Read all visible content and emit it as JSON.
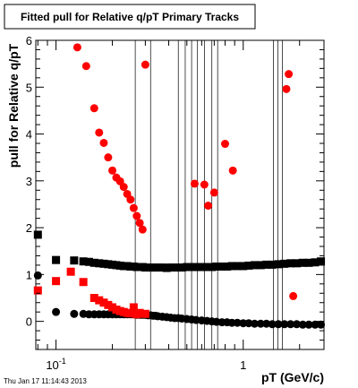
{
  "chart_data": {
    "type": "scatter",
    "title": "Fitted pull for Relative q/pT  Primary Tracks",
    "xlabel": "pT (GeV/c)",
    "ylabel": "pull for Relative q/pT",
    "x_scale": "log",
    "xlim": [
      0.078,
      2.7
    ],
    "ylim": [
      -0.6,
      6.0
    ],
    "x_tick_labels": [
      {
        "value": 0.1,
        "base": "10",
        "exp": "-1"
      },
      {
        "value": 1,
        "base": "1",
        "exp": ""
      }
    ],
    "y_tick_labels": [
      0,
      1,
      2,
      3,
      4,
      5,
      6
    ],
    "grid": false,
    "timestamp": "Thu Jan 17 11:14:43 2013",
    "colors": {
      "black": "#000000",
      "red": "#ff0000"
    },
    "series": [
      {
        "marker": "square",
        "color": "#000000",
        "x": [
          0.08,
          0.1,
          0.125,
          0.14,
          0.15,
          0.16,
          0.17,
          0.18,
          0.19,
          0.2,
          0.21,
          0.22,
          0.23,
          0.24,
          0.25,
          0.26,
          0.27,
          0.28,
          0.29,
          0.3,
          0.31,
          0.32,
          0.33,
          0.34,
          0.35,
          0.37,
          0.39,
          0.41,
          0.43,
          0.45,
          0.47,
          0.5,
          0.53,
          0.56,
          0.6,
          0.64,
          0.68,
          0.72,
          0.77,
          0.82,
          0.87,
          0.93,
          1.0,
          1.07,
          1.15,
          1.24,
          1.33,
          1.43,
          1.54,
          1.66,
          1.79,
          1.93,
          2.08,
          2.24,
          2.42,
          2.6
        ],
        "y": [
          1.85,
          1.31,
          1.3,
          1.28,
          1.27,
          1.25,
          1.24,
          1.23,
          1.22,
          1.21,
          1.2,
          1.19,
          1.18,
          1.18,
          1.17,
          1.17,
          1.16,
          1.16,
          1.16,
          1.15,
          1.15,
          1.15,
          1.15,
          1.15,
          1.15,
          1.15,
          1.14,
          1.15,
          1.15,
          1.15,
          1.15,
          1.16,
          1.16,
          1.16,
          1.16,
          1.16,
          1.16,
          1.17,
          1.17,
          1.17,
          1.18,
          1.18,
          1.18,
          1.19,
          1.2,
          1.2,
          1.21,
          1.21,
          1.22,
          1.23,
          1.24,
          1.24,
          1.25,
          1.25,
          1.26,
          1.28
        ]
      },
      {
        "marker": "circle",
        "color": "#000000",
        "x": [
          0.08,
          0.1,
          0.125,
          0.14,
          0.15,
          0.16,
          0.17,
          0.18,
          0.19,
          0.2,
          0.21,
          0.22,
          0.23,
          0.24,
          0.25,
          0.26,
          0.27,
          0.28,
          0.29,
          0.3,
          0.31,
          0.32,
          0.33,
          0.34,
          0.35,
          0.37,
          0.39,
          0.41,
          0.43,
          0.45,
          0.47,
          0.5,
          0.53,
          0.56,
          0.6,
          0.64,
          0.68,
          0.72,
          0.77,
          0.82,
          0.87,
          0.93,
          1.0,
          1.07,
          1.15,
          1.24,
          1.33,
          1.43,
          1.54,
          1.66,
          1.79,
          1.93,
          2.08,
          2.24,
          2.42,
          2.6
        ],
        "y": [
          0.98,
          0.2,
          0.16,
          0.16,
          0.15,
          0.15,
          0.15,
          0.15,
          0.15,
          0.15,
          0.15,
          0.15,
          0.15,
          0.15,
          0.15,
          0.15,
          0.14,
          0.14,
          0.14,
          0.14,
          0.13,
          0.13,
          0.12,
          0.12,
          0.11,
          0.1,
          0.09,
          0.08,
          0.07,
          0.07,
          0.06,
          0.05,
          0.04,
          0.03,
          0.02,
          0.01,
          0.0,
          -0.01,
          -0.02,
          -0.02,
          -0.03,
          -0.03,
          -0.04,
          -0.04,
          -0.05,
          -0.05,
          -0.05,
          -0.06,
          -0.06,
          -0.06,
          -0.06,
          -0.06,
          -0.07,
          -0.07,
          -0.07,
          -0.07
        ]
      },
      {
        "marker": "circle",
        "color": "#ff0000",
        "x": [
          0.13,
          0.145,
          0.16,
          0.17,
          0.18,
          0.19,
          0.2,
          0.21,
          0.22,
          0.23,
          0.24,
          0.25,
          0.26,
          0.27,
          0.28,
          0.29,
          0.3,
          0.55,
          0.62,
          0.65,
          0.7,
          0.8,
          0.88,
          1.7,
          1.75,
          1.85
        ],
        "y": [
          5.85,
          5.45,
          4.55,
          4.03,
          3.81,
          3.5,
          3.22,
          3.07,
          2.99,
          2.87,
          2.72,
          2.6,
          2.42,
          2.25,
          2.1,
          1.96,
          5.48,
          2.94,
          2.92,
          2.47,
          2.75,
          3.79,
          3.22,
          4.96,
          5.28,
          0.54
        ]
      },
      {
        "marker": "square",
        "color": "#ff0000",
        "x": [
          0.08,
          0.1,
          0.12,
          0.14,
          0.16,
          0.17,
          0.18,
          0.19,
          0.2,
          0.21,
          0.22,
          0.23,
          0.24,
          0.25,
          0.26,
          0.27,
          0.28,
          0.3
        ],
        "y": [
          0.66,
          0.86,
          1.06,
          0.84,
          0.5,
          0.45,
          0.4,
          0.35,
          0.3,
          0.25,
          0.22,
          0.2,
          0.18,
          0.17,
          0.3,
          0.15,
          0.18,
          0.16
        ]
      }
    ],
    "vertical_lines": {
      "color": "#000000",
      "x": [
        0.265,
        0.32,
        0.45,
        0.49,
        0.53,
        0.57,
        0.62,
        0.68,
        0.73,
        1.45,
        1.53,
        1.62
      ]
    }
  }
}
